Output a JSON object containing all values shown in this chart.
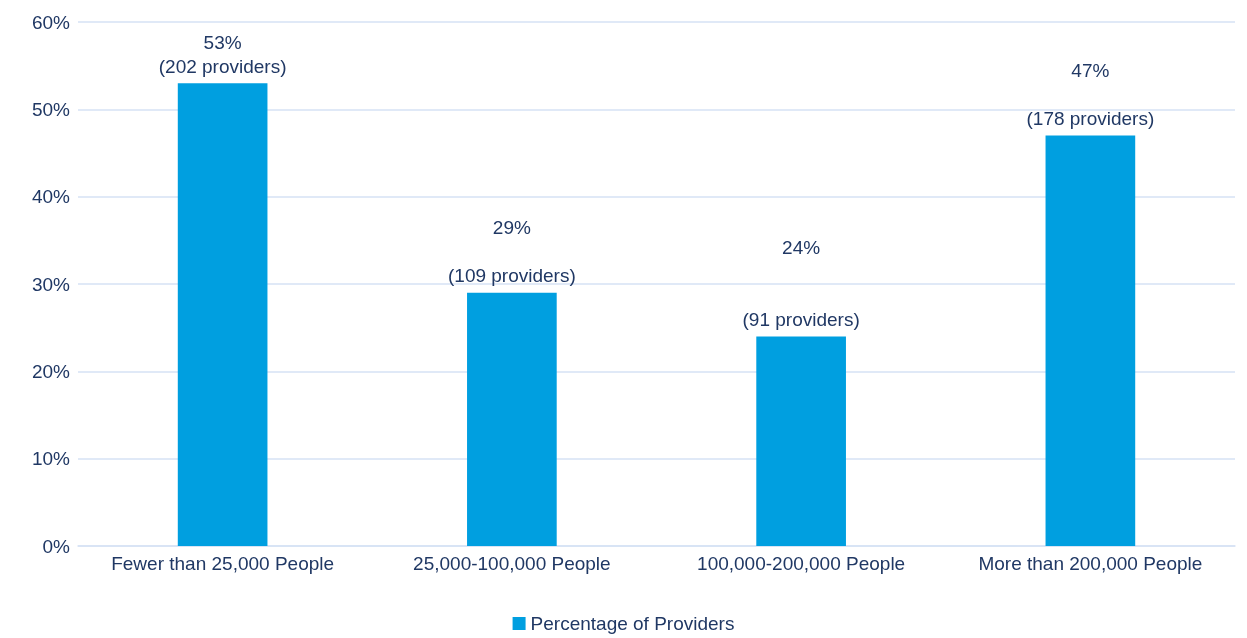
{
  "chart_data": {
    "type": "bar",
    "categories": [
      "Fewer than 25,000 People",
      "25,000-100,000 People",
      "100,000-200,000 People",
      "More than 200,000 People"
    ],
    "series": [
      {
        "name": "Percentage of Providers",
        "color": "#009fe0",
        "values": [
          53,
          29,
          24,
          47
        ],
        "value_labels": [
          "53%\n(202 providers)",
          "29%\n\n(109 providers)",
          "24%\n\n\n(91 providers)",
          "47%\n\n(178 providers)"
        ]
      }
    ],
    "ylim": [
      0,
      60
    ],
    "yticks": [
      {
        "value": 0,
        "label": "0%"
      },
      {
        "value": 10,
        "label": "10%"
      },
      {
        "value": 20,
        "label": "20%"
      },
      {
        "value": 30,
        "label": "30%"
      },
      {
        "value": 40,
        "label": "40%"
      },
      {
        "value": 50,
        "label": "50%"
      },
      {
        "value": 60,
        "label": "60%"
      }
    ],
    "grid": "y",
    "legend": "bottom"
  }
}
